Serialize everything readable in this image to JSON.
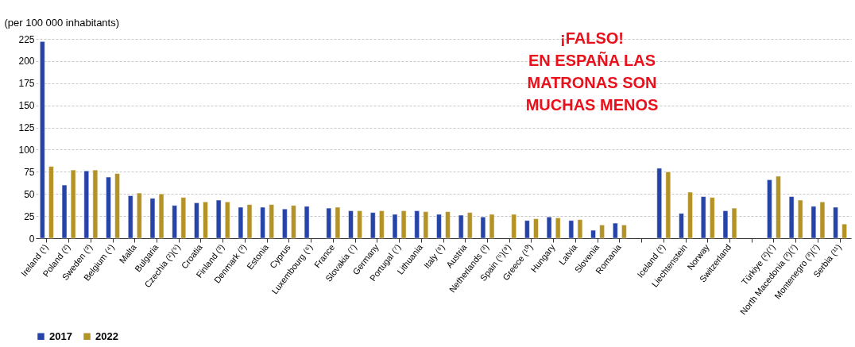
{
  "chart_data": {
    "type": "bar",
    "ylabel": "(per 100 000 inhabitants)",
    "categories": [
      "Ireland (¹)",
      "Poland (²)",
      "Sweden (³)",
      "Belgium (⁴)",
      "Malta",
      "Bulgaria",
      "Czechia (²)(⁵)",
      "Croatia",
      "Finland (³)",
      "Denmark (³)",
      "Estonia",
      "Cyprus",
      "Luxembourg (⁶)",
      "France",
      "Slovakia (⁷)",
      "Germany",
      "Portugal (⁷)",
      "Lithuania",
      "Italy (⁸)",
      "Austria",
      "Netherlands (³)",
      "Spain (⁵)(⁹)",
      "Greece (¹⁰)",
      "Hungary",
      "Latvia",
      "Slovenia",
      "Romania",
      null,
      "Iceland (³)",
      "Liechtenstein",
      "Norway",
      "Switzerland",
      null,
      "Türkiye (²)(⁷)",
      "North Macedonia (³)(⁷)",
      "Montenegro (³)(⁷)",
      "Serbia (¹¹)"
    ],
    "series": [
      {
        "name": "2017",
        "color": "#2644a8",
        "values": [
          222,
          60,
          76,
          69,
          48,
          45,
          37,
          40,
          43,
          35,
          35,
          33,
          36,
          34,
          31,
          29,
          27,
          31,
          27,
          26,
          24,
          null,
          20,
          24,
          20,
          9,
          17,
          null,
          79,
          28,
          47,
          31,
          null,
          66,
          47,
          36,
          35
        ]
      },
      {
        "name": "2022",
        "color": "#b39226",
        "values": [
          81,
          77,
          77,
          73,
          51,
          50,
          46,
          41,
          41,
          38,
          38,
          37,
          null,
          35,
          31,
          31,
          31,
          30,
          30,
          29,
          27,
          27,
          22,
          23,
          21,
          15,
          15,
          null,
          75,
          52,
          46,
          34,
          null,
          70,
          43,
          41,
          16
        ]
      }
    ],
    "ylim": [
      0,
      225
    ],
    "yticks": [
      0,
      25,
      50,
      75,
      100,
      125,
      150,
      175,
      200,
      225
    ],
    "grid": "y",
    "legend": "bottom",
    "annotations": [
      "¡FALSO!\nEN ESPAÑA LAS\nMATRONAS SON\nMUCHAS MENOS"
    ]
  }
}
